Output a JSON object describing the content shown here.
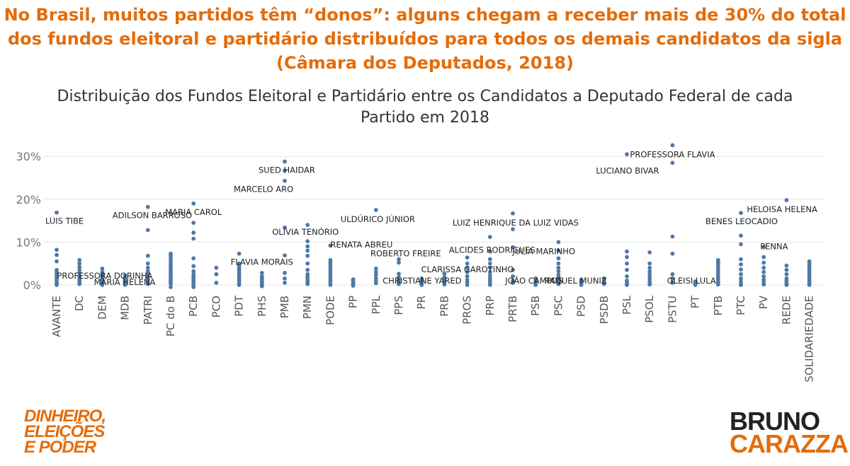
{
  "headline": {
    "line1": "No Brasil, muitos partidos têm “donos”: alguns chegam a receber mais de 30% do total",
    "line2": "dos fundos eleitoral e partidário distribuídos para todos os demais candidatos da sigla",
    "line3": "(Câmara dos Deputados, 2018)"
  },
  "chart_data": {
    "type": "scatter",
    "title": "Distribuição dos Fundos Eleitoral e Partidário entre os Candidatos a Deputado Federal de cada Partido em 2018",
    "title_line1": "Distribuição dos Fundos Eleitoral e Partidário entre os Candidatos a Deputado Federal de cada",
    "title_line2": "Partido em 2018",
    "xlabel": "",
    "ylabel": "",
    "ylim": [
      -1.5,
      33.5
    ],
    "yticks": [
      0,
      10,
      20,
      30
    ],
    "ytick_labels": [
      "0%",
      "10%",
      "20%",
      "30%"
    ],
    "grid": true,
    "marker_color": "#4e79a7",
    "categories": [
      "AVANTE",
      "DC",
      "DEM",
      "MDB",
      "PATRI",
      "PC do B",
      "PCB",
      "PCO",
      "PDT",
      "PHS",
      "PMB",
      "PMN",
      "PODE",
      "PP",
      "PPL",
      "PPS",
      "PR",
      "PRB",
      "PROS",
      "PRP",
      "PRTB",
      "PSB",
      "PSC",
      "PSD",
      "PSDB",
      "PSL",
      "PSOL",
      "PSTU",
      "PT",
      "PTB",
      "PTC",
      "PV",
      "REDE",
      "SOLIDARIEDADE"
    ],
    "values": [
      [
        16.9,
        8.2,
        7.0,
        5.5,
        3.5,
        3.0,
        2.5,
        2.0,
        1.5,
        1.0,
        0.5,
        0.2,
        0.0
      ],
      [
        5.8,
        5.0,
        4.2,
        3.5,
        2.8,
        2.0,
        1.5,
        1.0,
        0.5,
        0.2
      ],
      [
        3.8,
        3.0,
        2.5,
        2.0,
        1.5,
        1.0,
        0.6,
        0.3,
        0.0
      ],
      [
        2.2,
        1.8,
        1.4,
        1.1,
        0.8,
        0.5,
        0.3,
        0.1,
        0.0
      ],
      [
        18.2,
        12.8,
        6.8,
        5.0,
        4.0,
        3.2,
        2.6,
        2.0,
        1.5,
        1.0,
        0.5,
        0.2
      ],
      [
        7.3,
        6.8,
        6.2,
        5.6,
        5.0,
        4.5,
        4.0,
        3.5,
        3.0,
        2.5,
        2.0,
        1.5,
        1.0,
        0.6,
        0.3,
        -0.5
      ],
      [
        19.0,
        14.5,
        12.2,
        10.8,
        6.2,
        4.4,
        3.2,
        2.5,
        2.0,
        1.5,
        1.0,
        0.5,
        0.0,
        -0.5
      ],
      [
        4.0,
        2.5,
        0.5
      ],
      [
        7.3,
        5.0,
        4.5,
        4.0,
        3.5,
        3.0,
        2.5,
        2.0,
        1.5,
        1.0,
        0.5,
        0.0
      ],
      [
        2.8,
        2.0,
        1.6,
        1.2,
        0.9,
        0.6,
        0.3,
        0.0,
        -0.3
      ],
      [
        28.8,
        26.7,
        24.3,
        13.4,
        6.9,
        2.8,
        1.5,
        0.5
      ],
      [
        14.0,
        10.2,
        9.0,
        8.0,
        6.8,
        5.0,
        3.5,
        2.5,
        2.0,
        1.5,
        1.0,
        0.5,
        0.2
      ],
      [
        9.2,
        5.8,
        5.2,
        4.6,
        4.0,
        3.4,
        2.8,
        2.2,
        1.6,
        1.0,
        0.5,
        0.0
      ],
      [
        1.3,
        1.0,
        0.7,
        0.4,
        0.1,
        -0.2
      ],
      [
        17.5,
        3.8,
        3.0,
        2.3,
        1.6,
        1.0,
        0.4
      ],
      [
        6.0,
        5.2,
        2.6,
        1.8,
        1.2,
        0.6,
        0.2
      ],
      [
        1.5,
        1.0,
        0.6,
        0.3,
        0.0
      ],
      [
        2.6,
        1.8,
        1.2,
        0.6,
        0.1
      ],
      [
        6.4,
        5.0,
        4.0,
        3.0,
        2.0,
        1.2,
        0.6,
        0.0
      ],
      [
        11.2,
        7.8,
        6.0,
        5.0,
        4.0,
        3.0,
        2.2,
        1.5,
        1.0,
        0.5,
        0.0
      ],
      [
        16.7,
        13.0,
        8.8,
        3.5,
        2.0,
        1.0,
        0.5
      ],
      [
        1.5,
        1.0,
        0.6,
        0.3,
        0.0
      ],
      [
        10.0,
        8.0,
        6.2,
        5.0,
        4.0,
        3.2,
        2.4,
        1.8,
        1.2,
        0.6,
        0.2
      ],
      [
        1.2,
        0.8,
        0.5,
        0.2,
        0.0
      ],
      [
        1.5,
        1.0,
        0.6,
        0.2
      ],
      [
        30.5,
        7.8,
        6.5,
        5.0,
        3.5,
        2.0,
        1.0,
        0.5,
        0.2,
        0.0
      ],
      [
        7.6,
        5.0,
        4.0,
        3.2,
        2.5,
        1.8,
        1.2,
        0.6,
        0.1
      ],
      [
        32.6,
        28.5,
        11.3,
        7.3,
        2.5,
        1.5,
        0.5
      ],
      [
        0.8,
        0.5,
        0.3,
        0.1,
        0.0
      ],
      [
        5.8,
        5.3,
        4.8,
        4.2,
        3.6,
        3.0,
        2.4,
        1.8,
        1.2,
        0.6,
        0.1
      ],
      [
        16.8,
        11.5,
        9.5,
        6.0,
        4.8,
        3.6,
        2.5,
        1.5,
        0.8,
        0.2,
        0.0
      ],
      [
        8.8,
        6.5,
        5.2,
        4.0,
        3.0,
        2.0,
        1.2,
        0.6,
        0.1
      ],
      [
        19.8,
        4.5,
        3.5,
        2.5,
        1.5,
        1.0,
        0.5,
        0.2,
        0.0
      ],
      [
        5.5,
        5.0,
        4.5,
        4.0,
        3.5,
        3.0,
        2.5,
        2.0,
        1.5,
        1.0,
        0.6,
        0.2,
        0.0
      ]
    ],
    "annotations": [
      {
        "text": "LUIS TIBE",
        "category": "AVANTE",
        "value": 16.9
      },
      {
        "text": "PROFESSORA DORINHA",
        "category": "DEM",
        "value": 1.0
      },
      {
        "text": "MARIA HELENA",
        "category": "MDB",
        "value": 0.0
      },
      {
        "text": "ADILSON BARROSO",
        "category": "PATRI",
        "value": 18.2
      },
      {
        "text": "MARIA CAROL",
        "category": "PCB",
        "value": 19.0
      },
      {
        "text": "FLAVIA MORAIS",
        "category": "PDT",
        "value": 7.3
      },
      {
        "text": "SUED HAIDAR",
        "category": "PMB",
        "value": 28.8
      },
      {
        "text": "MARCELO ARO",
        "category": "PMB",
        "value": 24.3
      },
      {
        "text": "OLÍVIA TENÓRIO",
        "category": "PMN",
        "value": 14.0
      },
      {
        "text": "RENATA ABREU",
        "category": "PODE",
        "value": 9.2
      },
      {
        "text": "ULDÚRICO JÚNIOR",
        "category": "PPL",
        "value": 17.5
      },
      {
        "text": "ROBERTO FREIRE",
        "category": "PPS",
        "value": 6.0
      },
      {
        "text": "CHRISTIANE YARED",
        "category": "PR",
        "value": 0.0
      },
      {
        "text": "CLARISSA GAROTINHO",
        "category": "PROS",
        "value": 2.6
      },
      {
        "text": "ALCIDES RODRIGUES",
        "category": "PRP",
        "value": 7.8
      },
      {
        "text": "LUIZ HENRIQUE DA LUIZ VIDAS",
        "category": "PRTB",
        "value": 16.7
      },
      {
        "text": "JULIA MARINHO",
        "category": "PSC",
        "value": 10.0
      },
      {
        "text": "JOÃO CAMPOS",
        "category": "PSB",
        "value": 0.0
      },
      {
        "text": "RAQUEL MUNIZ",
        "category": "PSD",
        "value": 0.0
      },
      {
        "text": "PROFESSORA FLAVIA",
        "category": "PSTU",
        "value": 32.6
      },
      {
        "text": "LUCIANO BIVAR",
        "category": "PSTU",
        "value": 28.5
      },
      {
        "text": "GLEISI LULA",
        "category": "PT",
        "value": 0.0
      },
      {
        "text": "HELOISA HELENA",
        "category": "REDE",
        "value": 19.8
      },
      {
        "text": "BENES LEOCADIO",
        "category": "PTC",
        "value": 16.8
      },
      {
        "text": "PENNA",
        "category": "PV",
        "value": 8.8
      }
    ]
  },
  "brand_left": {
    "line1": "DINHEIRO,",
    "line2": "ELEIÇÕES",
    "line3": "E PODER"
  },
  "brand_right": {
    "line1": "BRUNO",
    "line2": "CARAZZA"
  }
}
